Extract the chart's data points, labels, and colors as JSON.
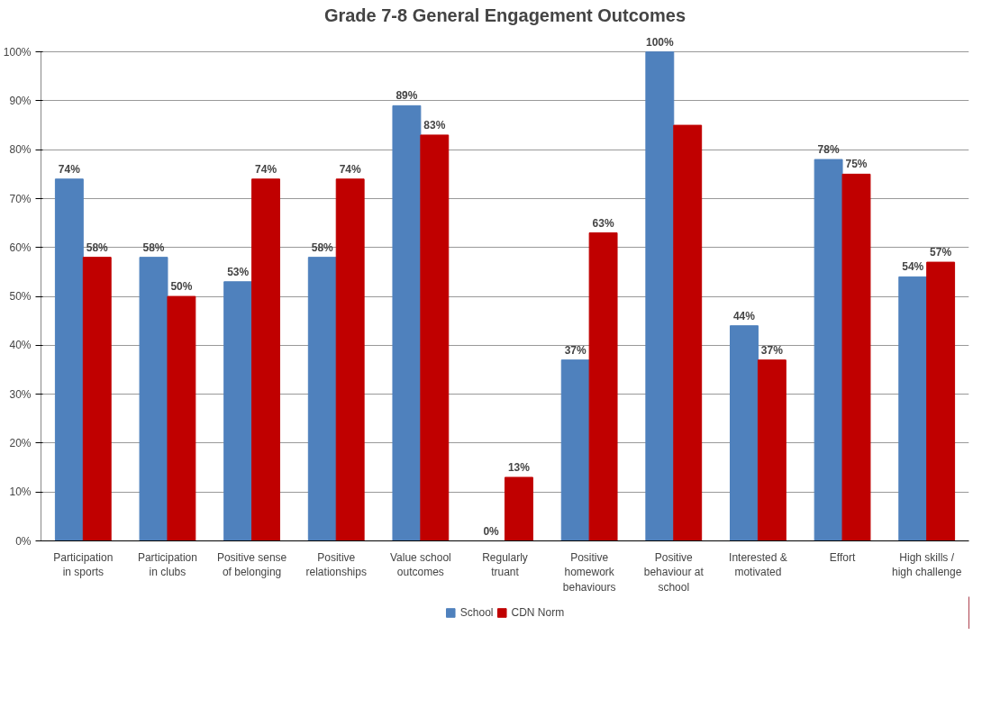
{
  "chart_data": {
    "type": "bar",
    "title": "Grade 7-8 General Engagement Outcomes",
    "categories": [
      "Participation\nin sports",
      "Participation\nin clubs",
      "Positive sense\nof belonging",
      "Positive\nrelationships",
      "Value school\noutcomes",
      "Regularly\ntruant",
      "Positive\nhomework\nbehaviours",
      "Positive\nbehaviour at\nschool",
      "Interested &\nmotivated",
      "Effort",
      "High skills /\nhigh challenge"
    ],
    "series": [
      {
        "name": "School",
        "color": "#4f81bd",
        "values": [
          74,
          58,
          53,
          58,
          89,
          0,
          37,
          100,
          44,
          78,
          54
        ],
        "value_labels": [
          "74%",
          "58%",
          "53%",
          "58%",
          "89%",
          "0%",
          "37%",
          "100%",
          "44%",
          "78%",
          "54%"
        ]
      },
      {
        "name": "CDN Norm",
        "color": "#c00000",
        "values": [
          58,
          50,
          74,
          74,
          83,
          13,
          63,
          85,
          37,
          75,
          57
        ],
        "value_labels": [
          "58%",
          "50%",
          "74%",
          "74%",
          "83%",
          "13%",
          "63%",
          null,
          "37%",
          "75%",
          "57%"
        ]
      }
    ],
    "ylim": [
      0,
      100
    ],
    "yticks": [
      {
        "value": 0,
        "label": "0%"
      },
      {
        "value": 10,
        "label": "10%"
      },
      {
        "value": 20,
        "label": "20%"
      },
      {
        "value": 30,
        "label": "30%"
      },
      {
        "value": 40,
        "label": "40%"
      },
      {
        "value": 50,
        "label": "50%"
      },
      {
        "value": 60,
        "label": "60%"
      },
      {
        "value": 70,
        "label": "70%"
      },
      {
        "value": 80,
        "label": "80%"
      },
      {
        "value": 90,
        "label": "90%"
      },
      {
        "value": 100,
        "label": "100%"
      }
    ],
    "grid": "y",
    "legend": "bottom"
  }
}
